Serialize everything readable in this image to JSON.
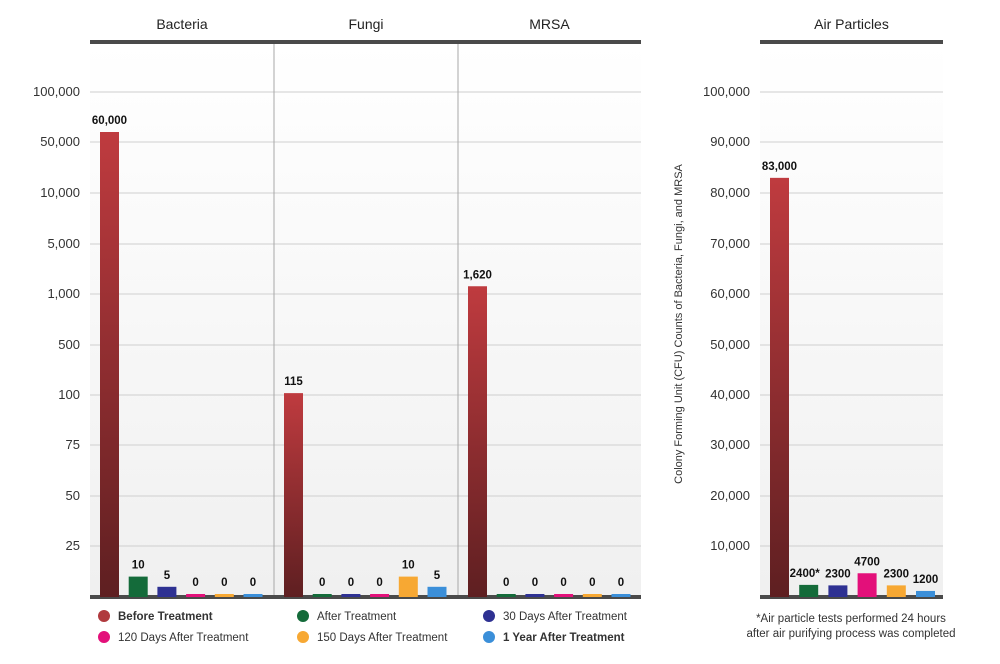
{
  "chart_data": [
    {
      "type": "bar",
      "scale": "custom-categorical",
      "tick_labels": [
        "100,000",
        "50,000",
        "10,000",
        "5,000",
        "1,000",
        "500",
        "100",
        "75",
        "50",
        "25"
      ],
      "panels": [
        {
          "title": "Bacteria",
          "values": [
            60000,
            10,
            5,
            0,
            0,
            0
          ],
          "labels": [
            "60,000",
            "10",
            "5",
            "0",
            "0",
            "0"
          ]
        },
        {
          "title": "Fungi",
          "values": [
            115,
            0,
            0,
            0,
            10,
            5
          ],
          "labels": [
            "115",
            "0",
            "0",
            "0",
            "10",
            "5"
          ]
        },
        {
          "title": "MRSA",
          "values": [
            1620,
            0,
            0,
            0,
            0,
            0
          ],
          "labels": [
            "1,620",
            "0",
            "0",
            "0",
            "0",
            "0"
          ]
        }
      ]
    },
    {
      "type": "bar",
      "title": "Air Particles",
      "ylabel": "Colony Forming Unit (CFU) Counts of Bacteria, Fungi, and MRSA",
      "ylim": [
        0,
        100000
      ],
      "tick_labels": [
        "100,000",
        "90,000",
        "80,000",
        "70,000",
        "60,000",
        "50,000",
        "40,000",
        "30,000",
        "20,000",
        "10,000"
      ],
      "values": [
        83000,
        2400,
        2300,
        4700,
        2300,
        1200
      ],
      "labels": [
        "83,000",
        "2400*",
        "2300",
        "4700",
        "2300",
        "1200"
      ]
    }
  ],
  "legend": [
    {
      "name": "Before Treatment",
      "color": "#b03a3e",
      "bold": true
    },
    {
      "name": "After Treatment",
      "color": "#146b3a",
      "bold": false
    },
    {
      "name": "30 Days After Treatment",
      "color": "#2e3192",
      "bold": false
    },
    {
      "name": "120 Days After Treatment",
      "color": "#e3107a",
      "bold": false
    },
    {
      "name": "150 Days After Treatment",
      "color": "#f7a833",
      "bold": false
    },
    {
      "name": "1 Year After Treatment",
      "color": "#3b8fd9",
      "bold": true
    }
  ],
  "note": {
    "line1": "*Air particle tests performed 24 hours",
    "line2": "after air purifying process was completed"
  }
}
